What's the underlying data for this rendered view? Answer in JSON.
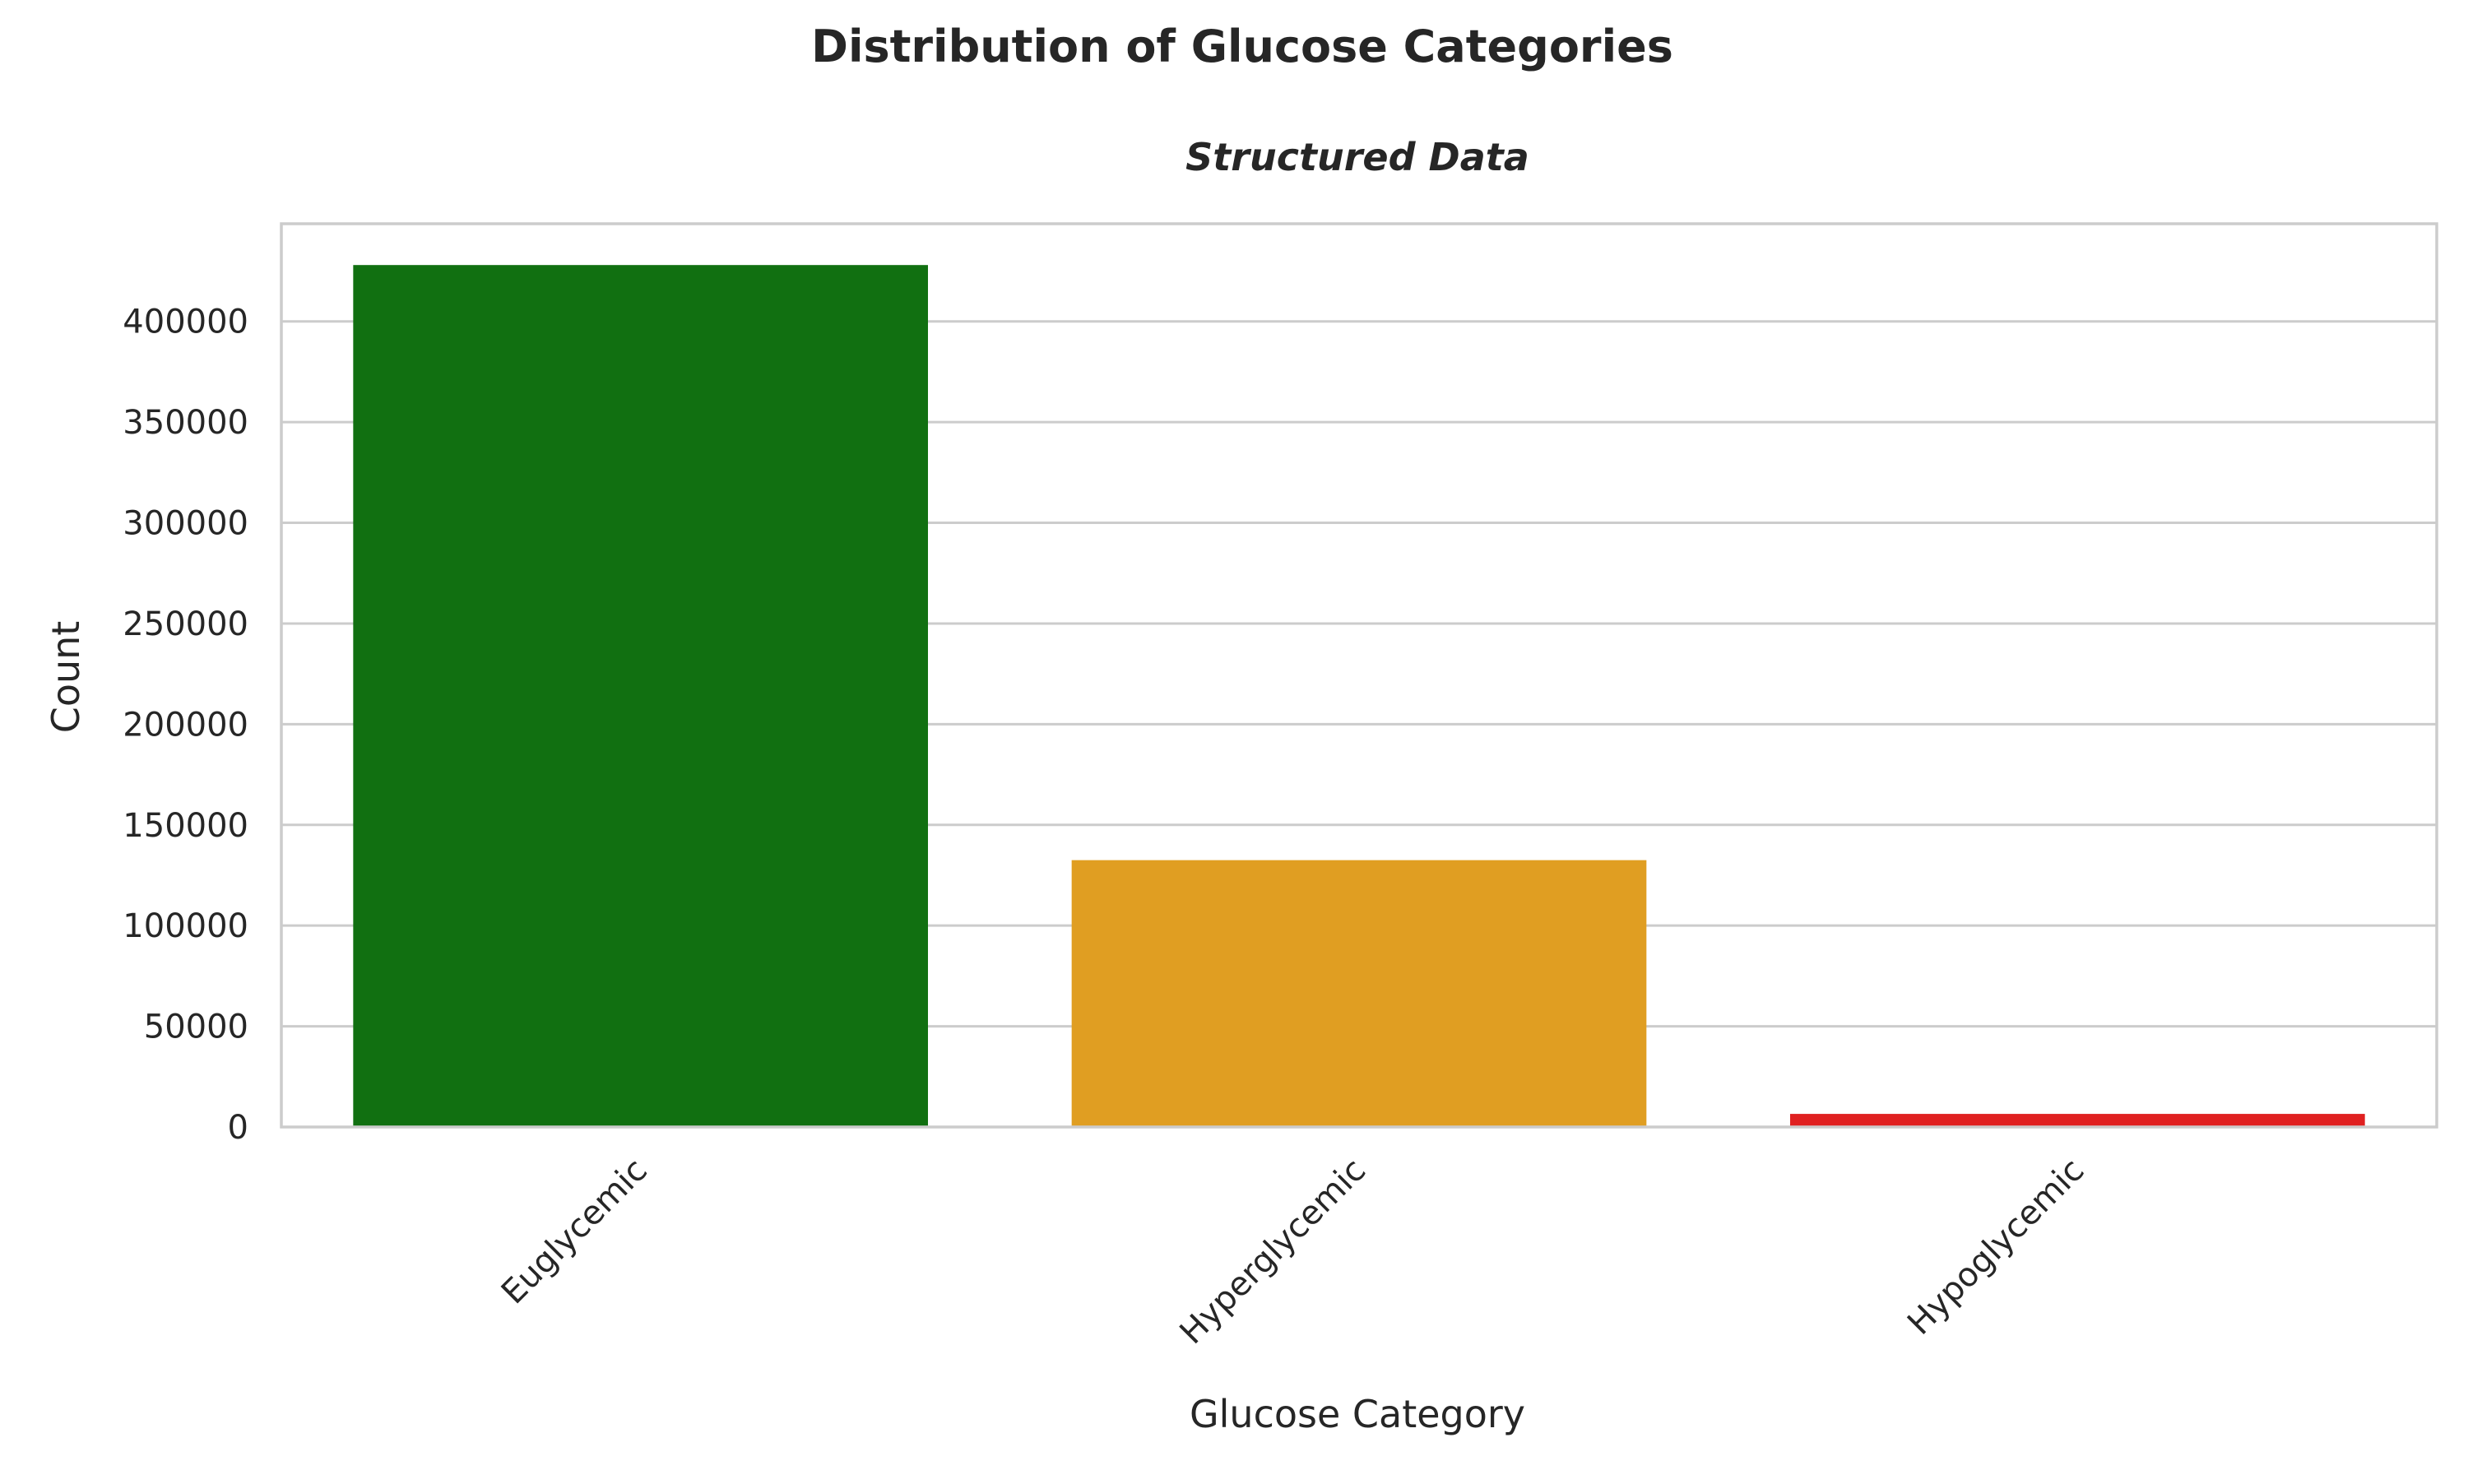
{
  "chart_data": {
    "type": "bar",
    "suptitle": "Distribution of Glucose Categories",
    "title": "Structured Data",
    "xlabel": "Glucose Category",
    "ylabel": "Count",
    "categories": [
      "Euglycemic",
      "Hyperglycemic",
      "Hypoglycemic"
    ],
    "values": [
      428000,
      132500,
      6500
    ],
    "colors": [
      "#117011",
      "#e09e22",
      "#e02020"
    ],
    "ylim": [
      0,
      448500
    ],
    "yticks": [
      0,
      50000,
      100000,
      150000,
      200000,
      250000,
      300000,
      350000,
      400000
    ],
    "grid": "horizontal",
    "xtick_rotation": 45
  }
}
